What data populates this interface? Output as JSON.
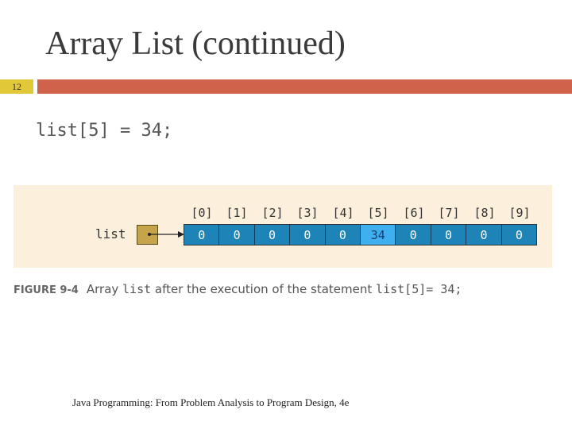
{
  "slide": {
    "title": "Array List (continued)",
    "number": "12",
    "code_statement": "list[5] = 34;",
    "footer": "Java Programming: From Problem Analysis to Program Design, 4e"
  },
  "colors": {
    "title_bar": "#d0624b",
    "slide_number_bg": "#e0c838",
    "figure_bg": "#fcf0dc",
    "cell": "#1e84b8",
    "cell_highlight": "#3fb0ef",
    "reference_box": "#c6a44a"
  },
  "figure": {
    "array_label": "list",
    "indices": [
      "[0]",
      "[1]",
      "[2]",
      "[3]",
      "[4]",
      "[5]",
      "[6]",
      "[7]",
      "[8]",
      "[9]"
    ],
    "values": [
      "0",
      "0",
      "0",
      "0",
      "0",
      "34",
      "0",
      "0",
      "0",
      "0"
    ],
    "highlighted_index": 5,
    "caption": {
      "label": "FIGURE 9-4",
      "text_part1": "Array ",
      "text_code1": "list",
      "text_part2": " after the execution of the statement ",
      "text_code2": "list[5]= 34;"
    }
  }
}
